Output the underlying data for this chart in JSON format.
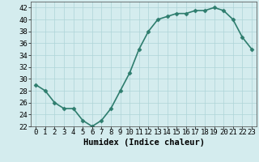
{
  "x": [
    0,
    1,
    2,
    3,
    4,
    5,
    6,
    7,
    8,
    9,
    10,
    11,
    12,
    13,
    14,
    15,
    16,
    17,
    18,
    19,
    20,
    21,
    22,
    23
  ],
  "y": [
    29,
    28,
    26,
    25,
    25,
    23,
    22,
    23,
    25,
    28,
    31,
    35,
    38,
    40,
    40.5,
    41,
    41,
    41.5,
    41.5,
    42,
    41.5,
    40,
    37,
    35
  ],
  "line_color": "#2e7d6e",
  "marker": "D",
  "marker_size": 2.5,
  "bg_color": "#d4ecee",
  "grid_color": "#aed4d8",
  "xlabel": "Humidex (Indice chaleur)",
  "xlim": [
    -0.5,
    23.5
  ],
  "ylim": [
    22,
    43
  ],
  "yticks": [
    22,
    24,
    26,
    28,
    30,
    32,
    34,
    36,
    38,
    40,
    42
  ],
  "xticks": [
    0,
    1,
    2,
    3,
    4,
    5,
    6,
    7,
    8,
    9,
    10,
    11,
    12,
    13,
    14,
    15,
    16,
    17,
    18,
    19,
    20,
    21,
    22,
    23
  ],
  "xlabel_fontsize": 7.5,
  "tick_fontsize": 6.5,
  "linewidth": 1.2
}
